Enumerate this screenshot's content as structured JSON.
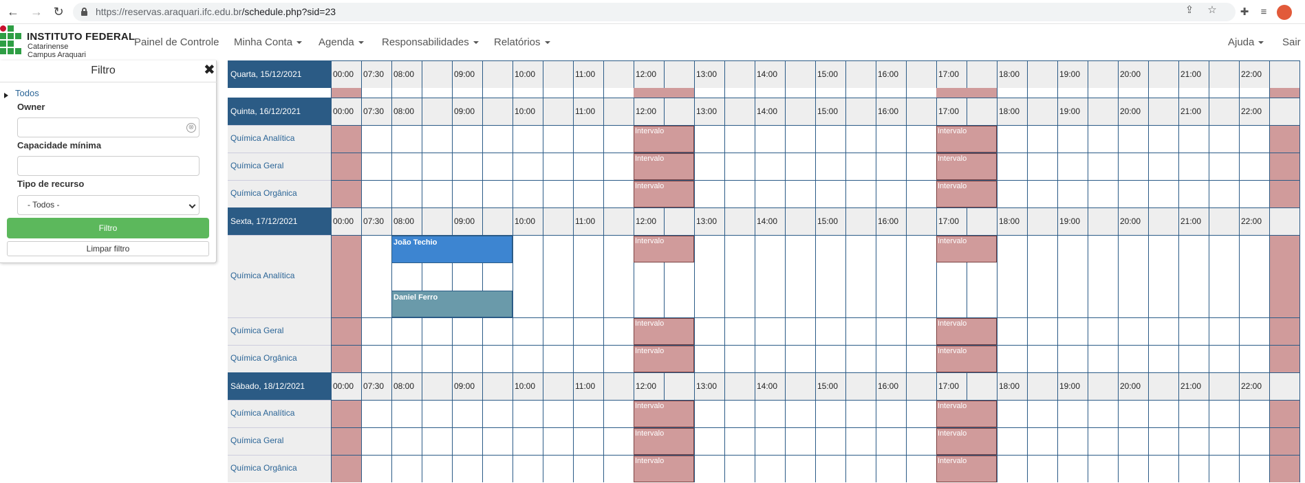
{
  "browser": {
    "url_host": "https://reservas.araquari.ifc.edu.br",
    "url_path": "/schedule.php?sid=23"
  },
  "header": {
    "logo_title": "INSTITUTO FEDERAL",
    "logo_sub1": "Catarinense",
    "logo_sub2": "Campus Araquari",
    "menu": {
      "painel": "Painel de Controle",
      "conta": "Minha Conta",
      "agenda": "Agenda",
      "resp": "Responsabilidades",
      "relatorios": "Relatórios",
      "ajuda": "Ajuda",
      "sair": "Sair"
    }
  },
  "filter": {
    "title": "Filtro",
    "todos": "Todos",
    "owner_label": "Owner",
    "owner_value": "",
    "capacidade_label": "Capacidade mínima",
    "capacidade_value": "",
    "tipo_label": "Tipo de recurso",
    "tipo_value": "- Todos -",
    "filtro_button": "Filtro",
    "limpar_button": "Limpar filtro"
  },
  "schedule": {
    "times": [
      "00:00",
      "07:30",
      "08:00",
      "09:00",
      "10:00",
      "11:00",
      "12:00",
      "13:00",
      "14:00",
      "15:00",
      "16:00",
      "17:00",
      "18:00",
      "19:00",
      "20:00",
      "21:00",
      "22:00"
    ],
    "intervalo_label": "Intervalo",
    "days": [
      {
        "name": "Quarta, 15/12/2021",
        "resources": []
      },
      {
        "name": "Quinta, 16/12/2021",
        "resources": [
          "Química Analítica",
          "Química Geral",
          "Química Orgânica"
        ]
      },
      {
        "name": "Sexta, 17/12/2021",
        "resources": [
          "Química Analítica",
          "Química Geral",
          "Química Orgânica"
        ]
      },
      {
        "name": "Sábado, 18/12/2021",
        "resources": [
          "Química Analítica",
          "Química Geral",
          "Química Orgânica"
        ]
      }
    ],
    "reservations": [
      {
        "day": 2,
        "resource": 0,
        "title": "João Techio",
        "color": "#3d85d1"
      },
      {
        "day": 2,
        "resource": 0,
        "title": "Daniel Ferro",
        "color": "#6a9aaa"
      }
    ]
  },
  "colors": {
    "header_blue": "#2b5b85",
    "blocked": "#d09b9b",
    "green": "#5cb85c"
  }
}
